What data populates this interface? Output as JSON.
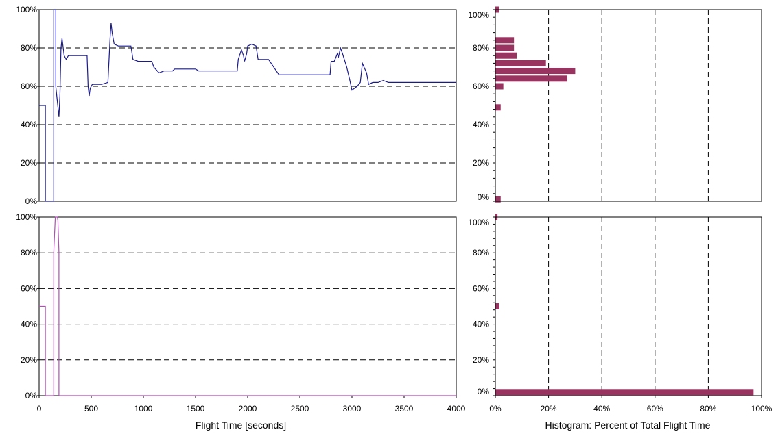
{
  "colors": {
    "top_line": "#1a1a8c",
    "bottom_line": "#b04fb4",
    "bar": "#99335f",
    "grid": "#000000"
  },
  "x_axis": {
    "label": "Flight Time [seconds]",
    "ticks": [
      "0",
      "500",
      "1000",
      "1500",
      "2000",
      "2500",
      "3000",
      "3500",
      "4000"
    ]
  },
  "hist_axis": {
    "label": "Histogram:  Percent of Total Flight Time",
    "ticks": [
      "0%",
      "20%",
      "40%",
      "60%",
      "80%",
      "100%"
    ]
  },
  "y_ticks": [
    "0%",
    "20%",
    "40%",
    "60%",
    "80%",
    "100%"
  ],
  "chart_data": [
    {
      "type": "line",
      "panel": "top-time-series",
      "xlim": [
        0,
        4000
      ],
      "ylim": [
        0,
        100
      ],
      "grid": "horizontal dashed at 20% steps",
      "series": [
        {
          "x": [
            0,
            60,
            60,
            140,
            140,
            160,
            160,
            190,
            200,
            210,
            220,
            240,
            260,
            280,
            300,
            330,
            400,
            460,
            470,
            480,
            490,
            510,
            530,
            560,
            600,
            660,
            680,
            690,
            700,
            720,
            760,
            800,
            880,
            900,
            950,
            1000,
            1080,
            1100,
            1150,
            1200,
            1280,
            1300,
            1400,
            1500,
            1530,
            1600,
            1700,
            1800,
            1900,
            1910,
            1940,
            1960,
            1970,
            1990,
            2000,
            2040,
            2080,
            2100,
            2200,
            2300,
            2400,
            2500,
            2600,
            2700,
            2790,
            2800,
            2830,
            2860,
            2870,
            2890,
            2910,
            2950,
            2980,
            3000,
            3050,
            3080,
            3100,
            3140,
            3160,
            3200,
            3250,
            3300,
            3350,
            3400,
            3500,
            3600,
            4000
          ],
          "y": [
            50,
            50,
            0,
            0,
            100,
            100,
            60,
            44,
            56,
            80,
            85,
            76,
            74,
            76,
            76,
            76,
            76,
            76,
            60,
            55,
            59,
            61,
            61,
            61,
            61,
            62,
            85,
            93,
            88,
            82,
            81,
            81,
            81,
            74,
            73,
            73,
            73,
            70,
            67,
            68,
            68,
            69,
            69,
            69,
            68,
            68,
            68,
            68,
            68,
            74,
            79,
            76,
            73,
            77,
            81,
            82,
            81,
            74,
            74,
            66,
            66,
            66,
            66,
            66,
            66,
            73,
            73,
            77,
            75,
            80,
            77,
            70,
            63,
            58,
            60,
            62,
            72,
            67,
            61,
            62,
            62,
            63,
            62,
            62,
            62,
            62,
            62
          ]
        }
      ]
    },
    {
      "type": "bar",
      "panel": "top-histogram",
      "orientation": "horizontal",
      "xlim": [
        0,
        100
      ],
      "ylim": [
        0,
        100
      ],
      "grid": "vertical dashed at 20% steps",
      "bins": [
        1,
        49,
        60,
        64,
        68,
        72,
        76,
        80,
        84,
        100
      ],
      "values": [
        2,
        2,
        3,
        27,
        30,
        19,
        8,
        7,
        7,
        1.5
      ]
    },
    {
      "type": "line",
      "panel": "bottom-time-series",
      "xlim": [
        0,
        4000
      ],
      "ylim": [
        0,
        100
      ],
      "grid": "horizontal dashed at 20% steps",
      "series": [
        {
          "x": [
            0,
            60,
            60,
            140,
            140,
            155,
            160,
            175,
            180,
            190,
            190,
            4000
          ],
          "y": [
            50,
            50,
            0,
            0,
            80,
            100,
            100,
            100,
            98,
            80,
            0,
            0
          ]
        }
      ]
    },
    {
      "type": "bar",
      "panel": "bottom-histogram",
      "orientation": "horizontal",
      "xlim": [
        0,
        100
      ],
      "ylim": [
        0,
        100
      ],
      "grid": "vertical dashed at 20% steps",
      "bins": [
        2,
        50,
        100
      ],
      "values": [
        97,
        1.5,
        0.8
      ]
    }
  ]
}
